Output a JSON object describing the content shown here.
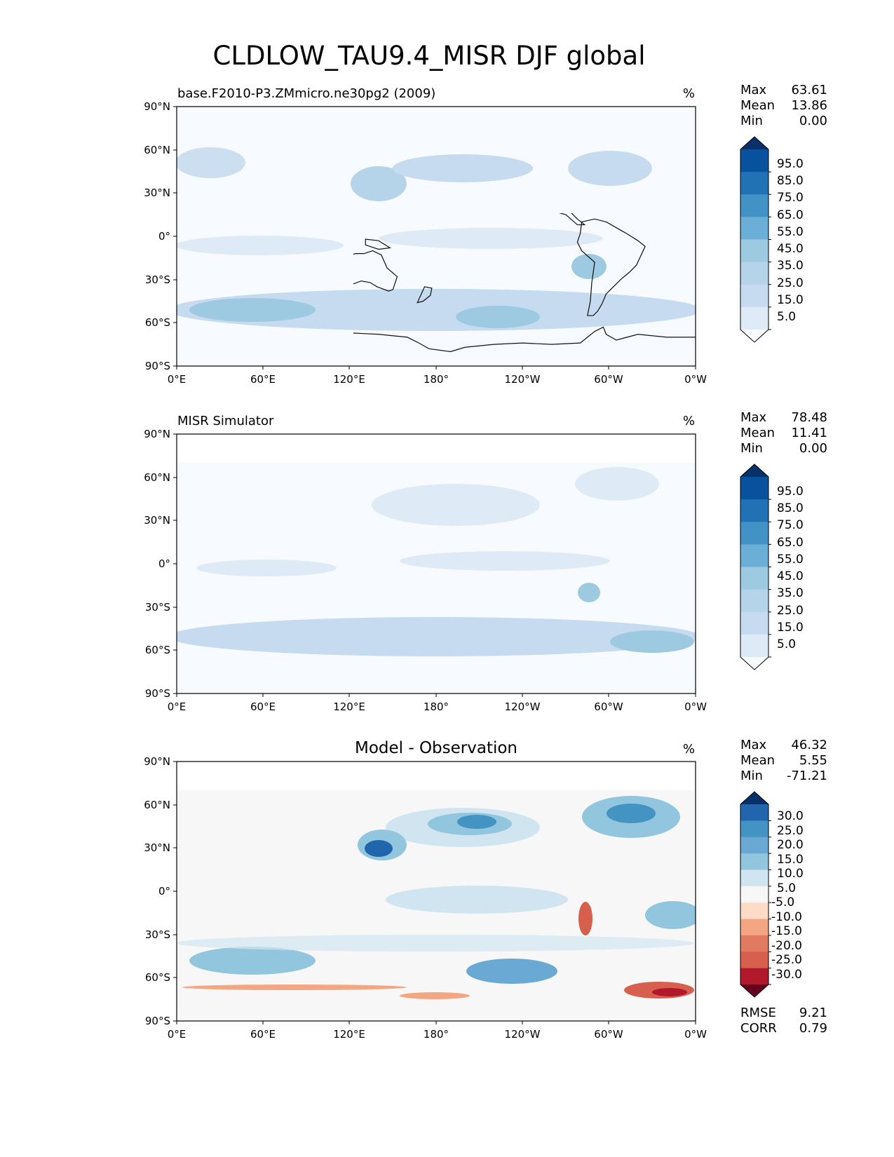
{
  "figure_title": "CLDLOW_TAU9.4_MISR DJF global",
  "chart_data": [
    {
      "type": "heatmap",
      "projection": "PlateCarree global map",
      "title": "base.F2010-P3.ZMmicro.ne30pg2 (2009)",
      "units": "%",
      "stats": {
        "max_label": "Max",
        "max": "63.61",
        "mean_label": "Mean",
        "mean": "13.86",
        "min_label": "Min",
        "min": "0.00"
      },
      "xticks": [
        "0°E",
        "60°E",
        "120°E",
        "180°",
        "120°W",
        "60°W",
        "0°W"
      ],
      "yticks": [
        "90°N",
        "60°N",
        "30°N",
        "0°",
        "30°S",
        "60°S",
        "90°S"
      ],
      "colorbar": {
        "levels": [
          "95.0",
          "85.0",
          "75.0",
          "65.0",
          "55.0",
          "45.0",
          "35.0",
          "25.0",
          "15.0",
          "5.0"
        ],
        "colors": [
          "#08306b",
          "#08519c",
          "#2171b5",
          "#4292c6",
          "#6baed6",
          "#9ecae1",
          "#b5d4ea",
          "#c6dbef",
          "#deebf7",
          "#f7fbff"
        ],
        "extend": "both"
      },
      "features": {
        "mean_value": 13.86,
        "storm_track_south_peak_pct": 50,
        "north_pacific_peak_pct": 40,
        "north_atlantic_peak_pct": 38,
        "peru_stratocumulus_pct": 45
      }
    },
    {
      "type": "heatmap",
      "projection": "PlateCarree global map",
      "title": "MISR Simulator",
      "units": "%",
      "stats": {
        "max_label": "Max",
        "max": "78.48",
        "mean_label": "Mean",
        "mean": "11.41",
        "min_label": "Min",
        "min": "0.00"
      },
      "xticks": [
        "0°E",
        "60°E",
        "120°E",
        "180°",
        "120°W",
        "60°W",
        "0°W"
      ],
      "yticks": [
        "90°N",
        "60°N",
        "30°N",
        "0°",
        "30°S",
        "60°S",
        "90°S"
      ],
      "colorbar": {
        "levels": [
          "95.0",
          "85.0",
          "75.0",
          "65.0",
          "55.0",
          "45.0",
          "35.0",
          "25.0",
          "15.0",
          "5.0"
        ],
        "colors": [
          "#08306b",
          "#08519c",
          "#2171b5",
          "#4292c6",
          "#6baed6",
          "#9ecae1",
          "#b5d4ea",
          "#c6dbef",
          "#deebf7",
          "#f7fbff"
        ],
        "extend": "both"
      },
      "features": {
        "mean_value": 11.41,
        "storm_track_south_peak_pct": 40,
        "land_masked": true,
        "peru_stratocumulus_pct": 50
      }
    },
    {
      "type": "heatmap",
      "projection": "PlateCarree global map",
      "title": "Model - Observation",
      "units": "%",
      "stats": {
        "max_label": "Max",
        "max": "46.32",
        "mean_label": "Mean",
        "mean": "5.55",
        "min_label": "Min",
        "min": "-71.21"
      },
      "extra_stats": {
        "rmse_label": "RMSE",
        "rmse": "9.21",
        "corr_label": "CORR",
        "corr": "0.79"
      },
      "xticks": [
        "0°E",
        "60°E",
        "120°E",
        "180°",
        "120°W",
        "60°W",
        "0°W"
      ],
      "yticks": [
        "90°N",
        "60°N",
        "30°N",
        "0°",
        "30°S",
        "60°S",
        "90°S"
      ],
      "colorbar": {
        "levels": [
          "30.0",
          "25.0",
          "20.0",
          "15.0",
          "10.0",
          "5.0",
          "-5.0",
          "-10.0",
          "-15.0",
          "-20.0",
          "-25.0",
          "-30.0"
        ],
        "colors": [
          "#08306b",
          "#2166ac",
          "#4393c3",
          "#6aa9d3",
          "#92c5de",
          "#d1e5f0",
          "#f7f7f7",
          "#fddbc7",
          "#f4a582",
          "#e07b62",
          "#d6604d",
          "#b2182b",
          "#67001f"
        ],
        "extend": "both"
      },
      "features": {
        "rmse": 9.21,
        "corr": 0.79,
        "kuroshio_peak_pct": 30,
        "gulf_stream_peak_pct": 25,
        "antarctic_coast_bias_pct": -25
      }
    }
  ]
}
